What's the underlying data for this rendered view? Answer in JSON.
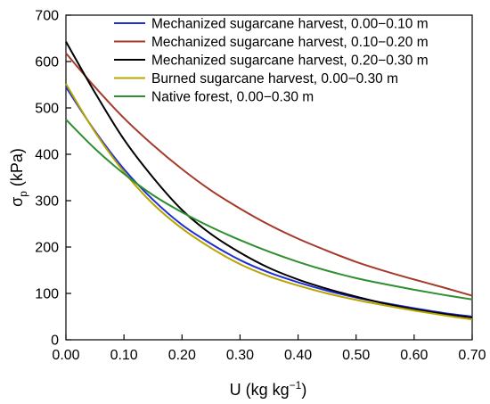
{
  "chart_data": {
    "type": "line",
    "title": "",
    "xlabel": {
      "main": "U (kg kg",
      "sup": "−1",
      "tail": ")"
    },
    "ylabel": {
      "main": "σ",
      "sub": "p",
      "tail": " (kPa)"
    },
    "xlim": [
      0.0,
      0.7
    ],
    "ylim": [
      0,
      700
    ],
    "x_ticks": [
      "0.00",
      "0.10",
      "0.20",
      "0.30",
      "0.40",
      "0.50",
      "0.60",
      "0.70"
    ],
    "y_ticks": [
      "0",
      "100",
      "200",
      "300",
      "400",
      "500",
      "600",
      "700"
    ],
    "grid": false,
    "legend_position": "top-right",
    "x": [
      0.0,
      0.05,
      0.1,
      0.15,
      0.2,
      0.25,
      0.3,
      0.35,
      0.4,
      0.45,
      0.5,
      0.55,
      0.6,
      0.65,
      0.7
    ],
    "series": [
      {
        "name": "Mechanized sugarcane harvest, 0.00−0.10 m",
        "color": "#1f2fd6",
        "values": [
          545,
          450,
          368,
          302,
          248,
          207,
          172,
          145,
          124,
          106,
          91,
          79,
          68,
          58,
          50
        ]
      },
      {
        "name": "Mechanized sugarcane harvest, 0.10−0.20 m",
        "color": "#a53a2a",
        "values": [
          618,
          545,
          478,
          420,
          368,
          322,
          283,
          248,
          218,
          192,
          168,
          148,
          130,
          113,
          95
        ]
      },
      {
        "name": "Mechanized sugarcane harvest, 0.20−0.30 m",
        "color": "#000000",
        "values": [
          643,
          533,
          432,
          350,
          280,
          228,
          188,
          155,
          130,
          110,
          93,
          78,
          66,
          56,
          48
        ]
      },
      {
        "name": "Burned sugarcane harvest, 0.00−0.30 m",
        "color": "#b8a400",
        "values": [
          552,
          448,
          362,
          293,
          240,
          198,
          163,
          137,
          117,
          100,
          86,
          74,
          63,
          53,
          44
        ]
      },
      {
        "name": "Native forest, 0.00−0.30 m",
        "color": "#2f8f2f",
        "values": [
          475,
          412,
          358,
          312,
          275,
          243,
          215,
          190,
          168,
          149,
          133,
          120,
          108,
          97,
          87
        ]
      }
    ]
  }
}
